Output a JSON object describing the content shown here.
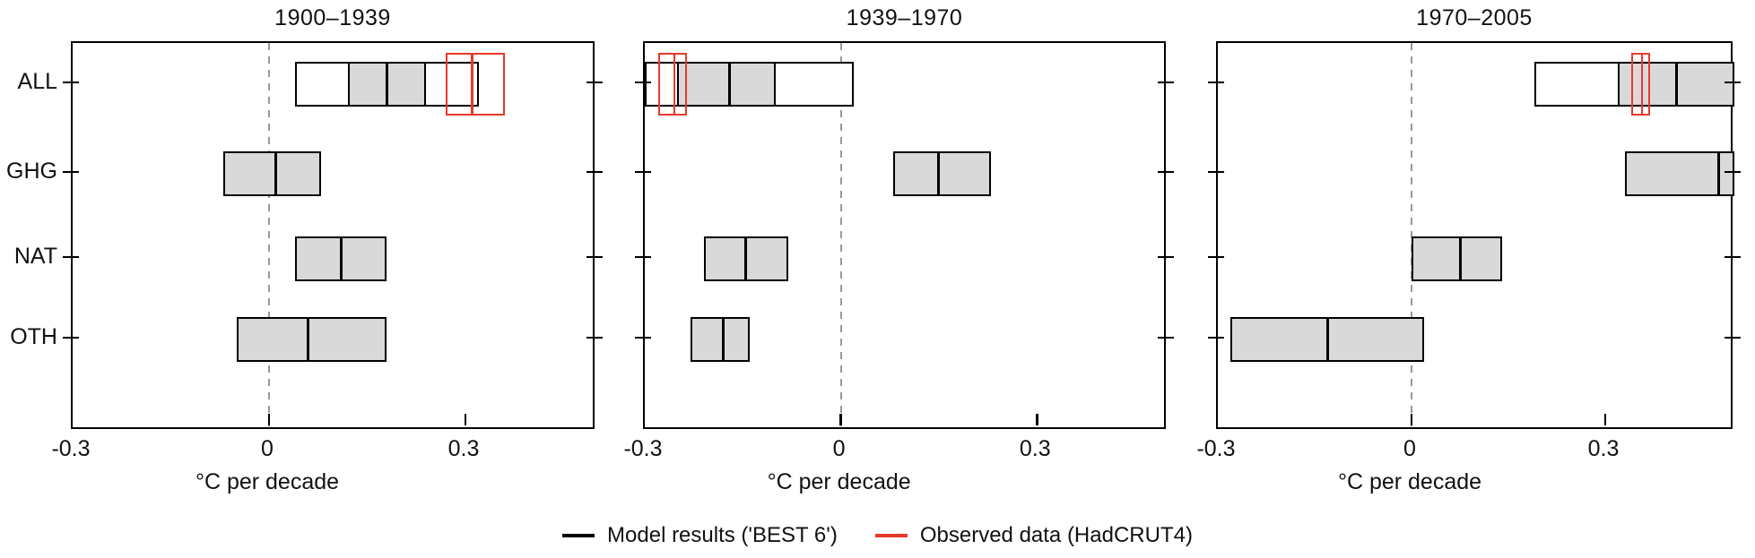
{
  "legend": {
    "model_label": "Model results ('BEST 6')",
    "observed_label": "Observed data (HadCRUT4)"
  },
  "colors": {
    "model_line": "#000000",
    "model_fill": "#d9d9d9",
    "observed": "#e8392c",
    "zero_line": "#999999"
  },
  "chart_data": {
    "type": "box-range",
    "xlabel": "°C per decade",
    "xlim": [
      -0.3,
      0.5
    ],
    "x_ticks": [
      {
        "value": -0.3,
        "label": "-0.3"
      },
      {
        "value": 0,
        "label": "0"
      },
      {
        "value": 0.3,
        "label": "0.3"
      }
    ],
    "zero_line": 0,
    "grid": false,
    "legend_position": "bottom-center",
    "categories": [
      "ALL",
      "GHG",
      "NAT",
      "OTH"
    ],
    "panels": [
      {
        "title": "1900–1939",
        "rows": [
          {
            "category": "ALL",
            "outer": [
              0.04,
              0.32
            ],
            "inner": [
              0.12,
              0.24
            ],
            "median": 0.18,
            "observed": {
              "range": [
                0.27,
                0.36
              ],
              "center": 0.31
            }
          },
          {
            "category": "GHG",
            "outer": [
              -0.07,
              0.08
            ],
            "inner": [
              -0.07,
              0.08
            ],
            "median": 0.01
          },
          {
            "category": "NAT",
            "outer": [
              0.04,
              0.18
            ],
            "inner": [
              0.04,
              0.18
            ],
            "median": 0.11
          },
          {
            "category": "OTH",
            "outer": [
              -0.05,
              0.18
            ],
            "inner": [
              -0.05,
              0.18
            ],
            "median": 0.06
          }
        ]
      },
      {
        "title": "1939–1970",
        "rows": [
          {
            "category": "ALL",
            "outer": [
              -0.3,
              0.02
            ],
            "inner": [
              -0.25,
              -0.1
            ],
            "median": -0.17,
            "observed": {
              "range": [
                -0.28,
                -0.235
              ],
              "center": -0.255
            }
          },
          {
            "category": "GHG",
            "outer": [
              0.08,
              0.23
            ],
            "inner": [
              0.08,
              0.23
            ],
            "median": 0.15
          },
          {
            "category": "NAT",
            "outer": [
              -0.21,
              -0.08
            ],
            "inner": [
              -0.21,
              -0.08
            ],
            "median": -0.145
          },
          {
            "category": "OTH",
            "outer": [
              -0.23,
              -0.14
            ],
            "inner": [
              -0.23,
              -0.14
            ],
            "median": -0.18
          }
        ]
      },
      {
        "title": "1970–2005",
        "rows": [
          {
            "category": "ALL",
            "outer": [
              0.19,
              0.5
            ],
            "inner": [
              0.32,
              0.5
            ],
            "median": 0.41,
            "observed": {
              "range": [
                0.34,
                0.37
              ],
              "center": 0.357
            }
          },
          {
            "category": "GHG",
            "outer": [
              0.33,
              0.5
            ],
            "inner": [
              0.33,
              0.5
            ],
            "median": 0.475
          },
          {
            "category": "NAT",
            "outer": [
              0.0,
              0.14
            ],
            "inner": [
              0.0,
              0.14
            ],
            "median": 0.075
          },
          {
            "category": "OTH",
            "outer": [
              -0.28,
              0.02
            ],
            "inner": [
              -0.28,
              0.02
            ],
            "median": -0.13
          }
        ]
      }
    ]
  }
}
